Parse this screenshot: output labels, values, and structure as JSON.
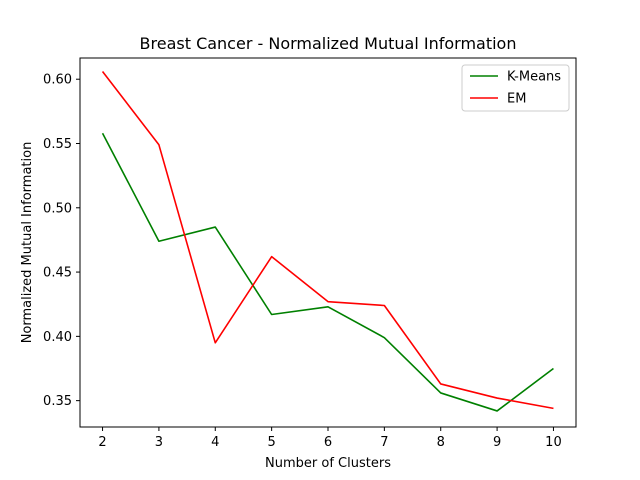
{
  "chart_data": {
    "type": "line",
    "title": "Breast Cancer - Normalized Mutual Information",
    "xlabel": "Number of Clusters",
    "ylabel": "Normalized Mutual Information",
    "x": [
      2,
      3,
      4,
      5,
      6,
      7,
      8,
      9,
      10
    ],
    "xticks": [
      "2",
      "3",
      "4",
      "5",
      "6",
      "7",
      "8",
      "9",
      "10"
    ],
    "yticks": [
      "0.35",
      "0.40",
      "0.45",
      "0.50",
      "0.55",
      "0.60"
    ],
    "xlim": [
      1.6,
      10.4
    ],
    "ylim": [
      0.3295,
      0.6165
    ],
    "grid": false,
    "legend_position": "top-right",
    "series": [
      {
        "name": "K-Means",
        "color": "#008000",
        "values": [
          0.558,
          0.474,
          0.485,
          0.417,
          0.423,
          0.399,
          0.356,
          0.342,
          0.375
        ]
      },
      {
        "name": "EM",
        "color": "#ff0000",
        "values": [
          0.606,
          0.549,
          0.395,
          0.462,
          0.427,
          0.424,
          0.363,
          0.352,
          0.344
        ]
      }
    ]
  }
}
